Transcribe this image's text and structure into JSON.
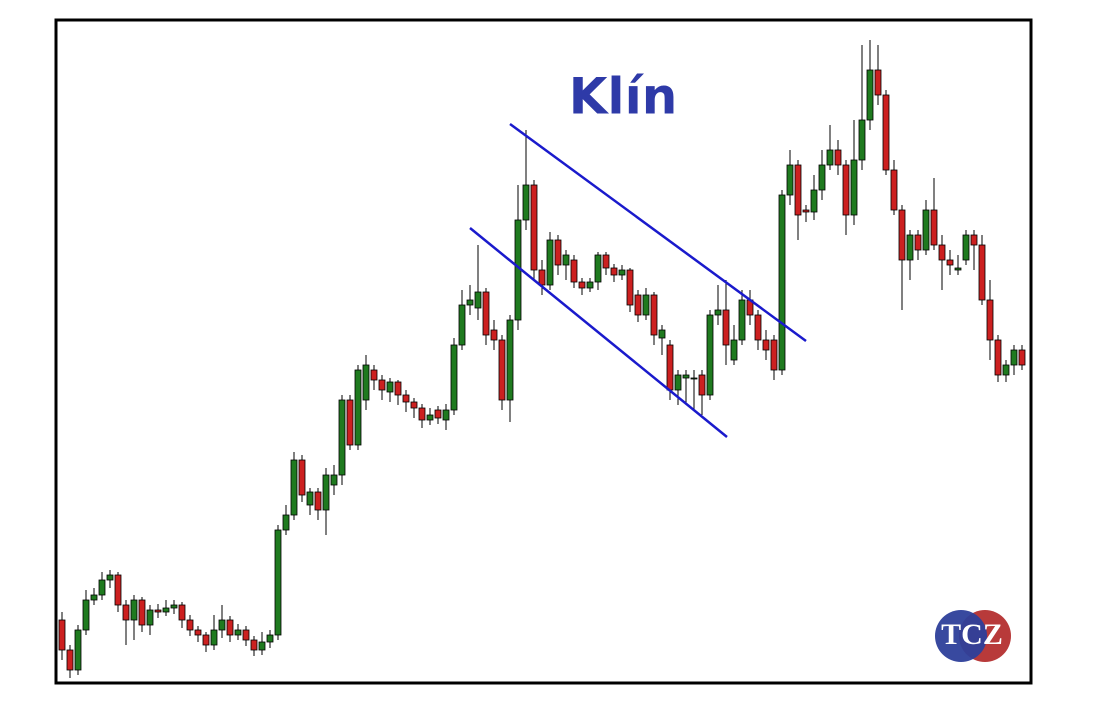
{
  "chart_data": {
    "type": "candlestick",
    "title": "Klín",
    "logo": "TCZ",
    "up_color": "#1f7a1f",
    "down_color": "#cc2020",
    "ylim": [
      17,
      680
    ],
    "ohlc": [
      [
        80,
        88,
        40,
        50
      ],
      [
        50,
        55,
        22,
        30
      ],
      [
        30,
        75,
        25,
        70
      ],
      [
        70,
        110,
        65,
        100
      ],
      [
        100,
        112,
        95,
        105
      ],
      [
        105,
        128,
        100,
        120
      ],
      [
        120,
        130,
        112,
        125
      ],
      [
        125,
        128,
        88,
        95
      ],
      [
        95,
        100,
        55,
        80
      ],
      [
        80,
        105,
        60,
        100
      ],
      [
        100,
        103,
        68,
        75
      ],
      [
        75,
        95,
        65,
        90
      ],
      [
        90,
        96,
        82,
        88
      ],
      [
        88,
        100,
        84,
        92
      ],
      [
        92,
        100,
        86,
        95
      ],
      [
        95,
        98,
        72,
        80
      ],
      [
        80,
        85,
        64,
        70
      ],
      [
        70,
        74,
        58,
        65
      ],
      [
        65,
        68,
        48,
        55
      ],
      [
        55,
        85,
        50,
        70
      ],
      [
        70,
        95,
        62,
        80
      ],
      [
        80,
        84,
        58,
        65
      ],
      [
        65,
        76,
        60,
        70
      ],
      [
        70,
        74,
        54,
        60
      ],
      [
        60,
        64,
        44,
        50
      ],
      [
        50,
        68,
        45,
        58
      ],
      [
        58,
        70,
        52,
        65
      ],
      [
        65,
        175,
        60,
        170
      ],
      [
        170,
        195,
        165,
        185
      ],
      [
        185,
        248,
        180,
        240
      ],
      [
        240,
        245,
        198,
        205
      ],
      [
        195,
        212,
        185,
        208
      ],
      [
        208,
        212,
        180,
        190
      ],
      [
        190,
        232,
        165,
        225
      ],
      [
        215,
        235,
        205,
        225
      ],
      [
        225,
        305,
        215,
        300
      ],
      [
        300,
        305,
        250,
        255
      ],
      [
        255,
        335,
        250,
        330
      ],
      [
        300,
        345,
        290,
        335
      ],
      [
        330,
        335,
        310,
        320
      ],
      [
        320,
        325,
        300,
        310
      ],
      [
        308,
        322,
        298,
        318
      ],
      [
        318,
        320,
        295,
        305
      ],
      [
        305,
        310,
        288,
        298
      ],
      [
        298,
        302,
        282,
        292
      ],
      [
        292,
        296,
        272,
        280
      ],
      [
        280,
        292,
        275,
        285
      ],
      [
        290,
        294,
        276,
        282
      ],
      [
        280,
        296,
        270,
        290
      ],
      [
        290,
        362,
        285,
        355
      ],
      [
        355,
        410,
        350,
        395
      ],
      [
        395,
        415,
        385,
        400
      ],
      [
        392,
        455,
        380,
        408
      ],
      [
        408,
        412,
        355,
        365
      ],
      [
        370,
        380,
        350,
        360
      ],
      [
        360,
        365,
        290,
        300
      ],
      [
        300,
        385,
        278,
        380
      ],
      [
        380,
        515,
        370,
        480
      ],
      [
        480,
        570,
        470,
        515
      ],
      [
        515,
        520,
        420,
        430
      ],
      [
        430,
        440,
        405,
        415
      ],
      [
        415,
        468,
        410,
        460
      ],
      [
        460,
        465,
        425,
        435
      ],
      [
        435,
        450,
        420,
        445
      ],
      [
        440,
        445,
        412,
        418
      ],
      [
        418,
        422,
        405,
        412
      ],
      [
        412,
        422,
        408,
        418
      ],
      [
        418,
        448,
        410,
        445
      ],
      [
        445,
        448,
        425,
        432
      ],
      [
        432,
        436,
        418,
        425
      ],
      [
        425,
        435,
        420,
        430
      ],
      [
        430,
        432,
        388,
        395
      ],
      [
        405,
        410,
        378,
        385
      ],
      [
        385,
        412,
        380,
        405
      ],
      [
        405,
        408,
        355,
        365
      ],
      [
        362,
        375,
        345,
        370
      ],
      [
        355,
        360,
        300,
        310
      ],
      [
        310,
        330,
        295,
        325
      ],
      [
        322,
        330,
        295,
        325
      ],
      [
        322,
        330,
        290,
        322
      ],
      [
        325,
        330,
        285,
        305
      ],
      [
        305,
        390,
        300,
        385
      ],
      [
        385,
        415,
        375,
        390
      ],
      [
        390,
        420,
        335,
        355
      ],
      [
        340,
        375,
        335,
        360
      ],
      [
        360,
        410,
        355,
        400
      ],
      [
        400,
        410,
        375,
        385
      ],
      [
        385,
        390,
        350,
        360
      ],
      [
        360,
        370,
        340,
        350
      ],
      [
        360,
        365,
        320,
        330
      ],
      [
        330,
        510,
        325,
        505
      ],
      [
        505,
        550,
        495,
        535
      ],
      [
        535,
        540,
        460,
        485
      ],
      [
        490,
        495,
        478,
        488
      ],
      [
        488,
        525,
        480,
        510
      ],
      [
        510,
        550,
        500,
        535
      ],
      [
        535,
        575,
        530,
        550
      ],
      [
        550,
        560,
        525,
        535
      ],
      [
        535,
        540,
        465,
        485
      ],
      [
        485,
        580,
        475,
        540
      ],
      [
        540,
        655,
        530,
        580
      ],
      [
        580,
        660,
        570,
        630
      ],
      [
        630,
        655,
        595,
        605
      ],
      [
        605,
        610,
        525,
        530
      ],
      [
        530,
        540,
        485,
        490
      ],
      [
        490,
        495,
        390,
        440
      ],
      [
        440,
        470,
        420,
        465
      ],
      [
        465,
        470,
        440,
        450
      ],
      [
        450,
        500,
        445,
        490
      ],
      [
        490,
        522,
        450,
        455
      ],
      [
        455,
        465,
        410,
        440
      ],
      [
        440,
        450,
        425,
        435
      ],
      [
        430,
        445,
        425,
        432
      ],
      [
        440,
        470,
        435,
        465
      ],
      [
        465,
        470,
        430,
        455
      ],
      [
        455,
        465,
        395,
        400
      ],
      [
        400,
        420,
        340,
        360
      ],
      [
        360,
        365,
        318,
        325
      ],
      [
        325,
        340,
        318,
        335
      ],
      [
        335,
        355,
        325,
        350
      ],
      [
        350,
        355,
        330,
        335
      ]
    ]
  }
}
